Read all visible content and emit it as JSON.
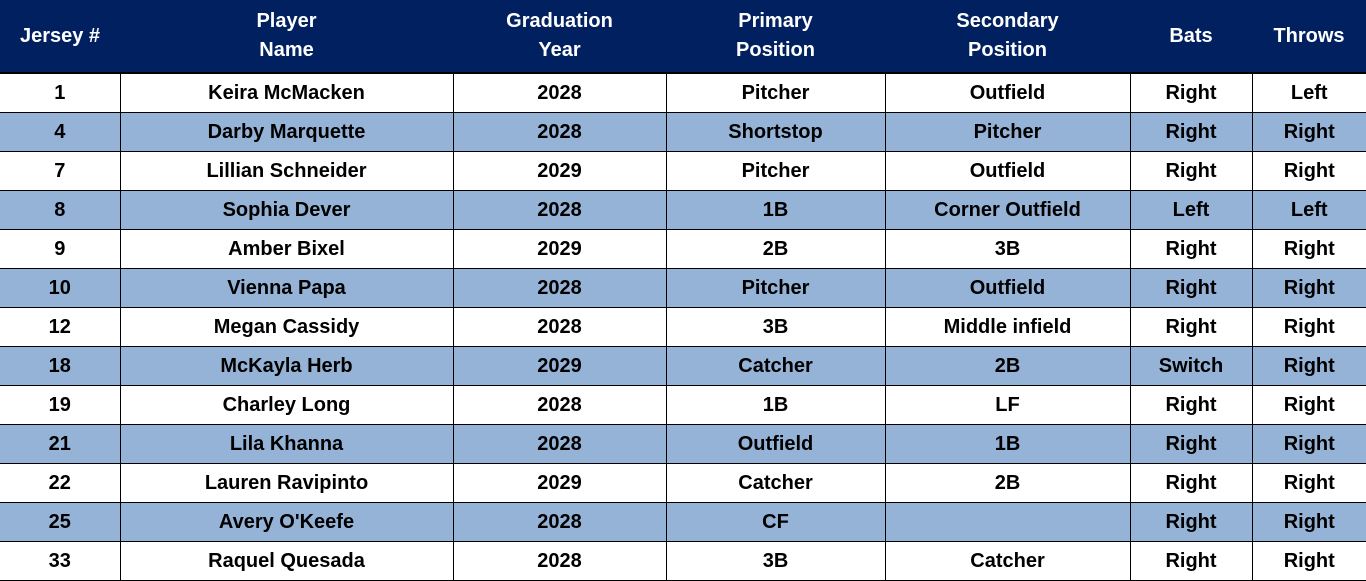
{
  "table": {
    "columns": [
      "Jersey #",
      "Player\nName",
      "Graduation\nYear",
      "Primary\nPosition",
      "Secondary\nPosition",
      "Bats",
      "Throws"
    ],
    "rows": [
      [
        "1",
        "Keira McMacken",
        "2028",
        "Pitcher",
        "Outfield",
        "Right",
        "Left"
      ],
      [
        "4",
        "Darby Marquette",
        "2028",
        "Shortstop",
        "Pitcher",
        "Right",
        "Right"
      ],
      [
        "7",
        "Lillian Schneider",
        "2029",
        "Pitcher",
        "Outfield",
        "Right",
        "Right"
      ],
      [
        "8",
        "Sophia Dever",
        "2028",
        "1B",
        "Corner Outfield",
        "Left",
        "Left"
      ],
      [
        "9",
        "Amber Bixel",
        "2029",
        "2B",
        "3B",
        "Right",
        "Right"
      ],
      [
        "10",
        "Vienna Papa",
        "2028",
        "Pitcher",
        "Outfield",
        "Right",
        "Right"
      ],
      [
        "12",
        "Megan Cassidy",
        "2028",
        "3B",
        "Middle infield",
        "Right",
        "Right"
      ],
      [
        "18",
        "McKayla Herb",
        "2029",
        "Catcher",
        "2B",
        "Switch",
        "Right"
      ],
      [
        "19",
        "Charley Long",
        "2028",
        "1B",
        "LF",
        "Right",
        "Right"
      ],
      [
        "21",
        "Lila Khanna",
        "2028",
        "Outfield",
        "1B",
        "Right",
        "Right"
      ],
      [
        "22",
        "Lauren Ravipinto",
        "2029",
        "Catcher",
        "2B",
        "Right",
        "Right"
      ],
      [
        "25",
        "Avery O'Keefe",
        "2028",
        "CF",
        null,
        "Right",
        "Right"
      ],
      [
        "33",
        "Raquel Quesada",
        "2028",
        "3B",
        "Catcher",
        "Right",
        "Right"
      ]
    ]
  }
}
